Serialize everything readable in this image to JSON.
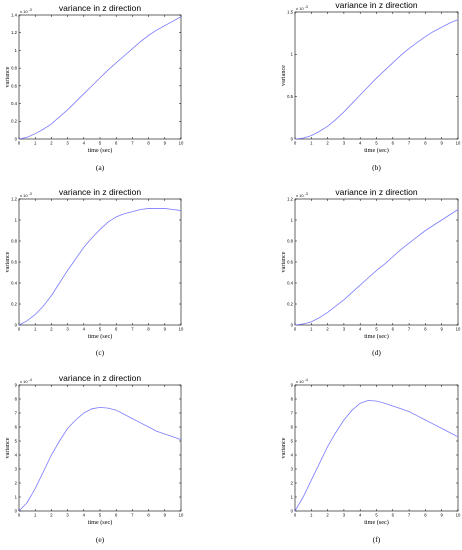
{
  "colors": {
    "line": "#7b7bff",
    "axis": "#000000",
    "background": "#ffffff"
  },
  "chart_data": [
    {
      "panel_label": "(a)",
      "type": "line",
      "title": "variance in z direction",
      "xlabel": "time (sec)",
      "ylabel": "variance",
      "exponent_label": "x 10",
      "exponent_power": "-3",
      "xlim": [
        0,
        10
      ],
      "ylim": [
        0,
        1.4
      ],
      "xticks": [
        0,
        1,
        2,
        3,
        4,
        5,
        6,
        7,
        8,
        9,
        10
      ],
      "yticks": [
        0,
        0.2,
        0.4,
        0.6,
        0.8,
        1,
        1.2,
        1.4
      ],
      "ytick_labels": [
        "0",
        "0.2",
        "0.4",
        "0.6",
        "0.8",
        "1",
        "1.2",
        "1.4"
      ],
      "grid": false,
      "series": [
        {
          "x": [
            0,
            0.5,
            1,
            1.5,
            2,
            2.5,
            3,
            3.5,
            4,
            4.5,
            5,
            5.5,
            6,
            6.5,
            7,
            7.5,
            8,
            8.5,
            9,
            9.5,
            10
          ],
          "y": [
            0,
            0.02,
            0.06,
            0.11,
            0.17,
            0.25,
            0.33,
            0.42,
            0.51,
            0.6,
            0.69,
            0.78,
            0.86,
            0.94,
            1.02,
            1.1,
            1.17,
            1.23,
            1.28,
            1.33,
            1.38
          ]
        }
      ]
    },
    {
      "panel_label": "(b)",
      "type": "line",
      "title": "variance in z direction",
      "xlabel": "time (sec)",
      "ylabel": "variance",
      "exponent_label": "x 10",
      "exponent_power": "-3",
      "xlim": [
        0,
        10
      ],
      "ylim": [
        0,
        1.5
      ],
      "xticks": [
        0,
        1,
        2,
        3,
        4,
        5,
        6,
        7,
        8,
        9,
        10
      ],
      "yticks": [
        0,
        0.5,
        1,
        1.5
      ],
      "ytick_labels": [
        "0",
        "0.5",
        "1",
        "1.5"
      ],
      "grid": false,
      "series": [
        {
          "x": [
            0,
            0.5,
            1,
            1.5,
            2,
            2.5,
            3,
            3.5,
            4,
            4.5,
            5,
            5.5,
            6,
            6.5,
            7,
            7.5,
            8,
            8.5,
            9,
            9.5,
            10
          ],
          "y": [
            0,
            0.01,
            0.04,
            0.09,
            0.15,
            0.23,
            0.32,
            0.42,
            0.52,
            0.62,
            0.72,
            0.81,
            0.9,
            0.99,
            1.07,
            1.14,
            1.21,
            1.27,
            1.32,
            1.37,
            1.41
          ]
        }
      ]
    },
    {
      "panel_label": "(c)",
      "type": "line",
      "title": "variance in z direction",
      "xlabel": "time (sec)",
      "ylabel": "variance",
      "exponent_label": "x 10",
      "exponent_power": "-3",
      "xlim": [
        0,
        10
      ],
      "ylim": [
        0,
        1.2
      ],
      "xticks": [
        0,
        1,
        2,
        3,
        4,
        5,
        6,
        7,
        8,
        9,
        10
      ],
      "yticks": [
        0,
        0.2,
        0.4,
        0.6,
        0.8,
        1,
        1.2
      ],
      "ytick_labels": [
        "0",
        "0.2",
        "0.4",
        "0.6",
        "0.8",
        "1",
        "1.2"
      ],
      "grid": false,
      "series": [
        {
          "x": [
            0,
            0.5,
            1,
            1.5,
            2,
            2.5,
            3,
            3.5,
            4,
            4.5,
            5,
            5.5,
            6,
            6.5,
            7,
            7.5,
            8,
            8.5,
            9,
            9.5,
            10
          ],
          "y": [
            0,
            0.04,
            0.1,
            0.18,
            0.28,
            0.4,
            0.52,
            0.63,
            0.74,
            0.83,
            0.91,
            0.98,
            1.03,
            1.06,
            1.08,
            1.1,
            1.11,
            1.11,
            1.11,
            1.1,
            1.09
          ]
        }
      ]
    },
    {
      "panel_label": "(d)",
      "type": "line",
      "title": "variance in z direction",
      "xlabel": "time (sec)",
      "ylabel": "variance",
      "exponent_label": "x 10",
      "exponent_power": "-3",
      "xlim": [
        0,
        10
      ],
      "ylim": [
        0,
        1.2
      ],
      "xticks": [
        0,
        1,
        2,
        3,
        4,
        5,
        6,
        7,
        8,
        9,
        10
      ],
      "yticks": [
        0,
        0.2,
        0.4,
        0.6,
        0.8,
        1,
        1.2
      ],
      "ytick_labels": [
        "0",
        "0.2",
        "0.4",
        "0.6",
        "0.8",
        "1",
        "1.2"
      ],
      "grid": false,
      "series": [
        {
          "x": [
            0,
            0.5,
            1,
            1.5,
            2,
            2.5,
            3,
            3.5,
            4,
            4.5,
            5,
            5.5,
            6,
            6.5,
            7,
            7.5,
            8,
            8.5,
            9,
            9.5,
            10
          ],
          "y": [
            0,
            0.01,
            0.03,
            0.07,
            0.12,
            0.18,
            0.24,
            0.31,
            0.38,
            0.45,
            0.52,
            0.58,
            0.65,
            0.72,
            0.78,
            0.84,
            0.9,
            0.95,
            1.0,
            1.05,
            1.1
          ]
        }
      ]
    },
    {
      "panel_label": "(e)",
      "type": "line",
      "title": "variance in z direction",
      "xlabel": "time (sec)",
      "ylabel": "variance",
      "exponent_label": "x 10",
      "exponent_power": "-4",
      "xlim": [
        0,
        10
      ],
      "ylim": [
        0,
        9
      ],
      "xticks": [
        0,
        1,
        2,
        3,
        4,
        5,
        6,
        7,
        8,
        9,
        10
      ],
      "yticks": [
        0,
        1,
        2,
        3,
        4,
        5,
        6,
        7,
        8,
        9
      ],
      "ytick_labels": [
        "0",
        "1",
        "2",
        "3",
        "4",
        "5",
        "6",
        "7",
        "8",
        "9"
      ],
      "grid": false,
      "series": [
        {
          "x": [
            0,
            0.5,
            1,
            1.5,
            2,
            2.5,
            3,
            3.5,
            4,
            4.5,
            5,
            5.5,
            6,
            6.5,
            7,
            7.5,
            8,
            8.5,
            9,
            9.5,
            10
          ],
          "y": [
            0,
            0.6,
            1.6,
            2.8,
            4.0,
            5.0,
            5.9,
            6.5,
            7.0,
            7.3,
            7.4,
            7.35,
            7.2,
            6.9,
            6.6,
            6.3,
            6.0,
            5.7,
            5.5,
            5.3,
            5.1
          ]
        }
      ]
    },
    {
      "panel_label": "(f)",
      "type": "line",
      "title": "",
      "xlabel": "time (sec)",
      "ylabel": "variance",
      "exponent_label": "x 10",
      "exponent_power": "-4",
      "xlim": [
        0,
        10
      ],
      "ylim": [
        0,
        9
      ],
      "xticks": [
        0,
        1,
        2,
        3,
        4,
        5,
        6,
        7,
        8,
        9,
        10
      ],
      "yticks": [
        0,
        1,
        2,
        3,
        4,
        5,
        6,
        7,
        8,
        9
      ],
      "ytick_labels": [
        "0",
        "1",
        "2",
        "3",
        "4",
        "5",
        "6",
        "7",
        "8",
        "9"
      ],
      "grid": false,
      "series": [
        {
          "x": [
            0,
            0.5,
            1,
            1.5,
            2,
            2.5,
            3,
            3.5,
            4,
            4.5,
            5,
            5.5,
            6,
            6.5,
            7,
            7.5,
            8,
            8.5,
            9,
            9.5,
            10
          ],
          "y": [
            0,
            1.0,
            2.2,
            3.4,
            4.6,
            5.6,
            6.5,
            7.2,
            7.7,
            7.9,
            7.85,
            7.7,
            7.5,
            7.3,
            7.1,
            6.8,
            6.5,
            6.2,
            5.9,
            5.6,
            5.3
          ]
        }
      ]
    }
  ]
}
